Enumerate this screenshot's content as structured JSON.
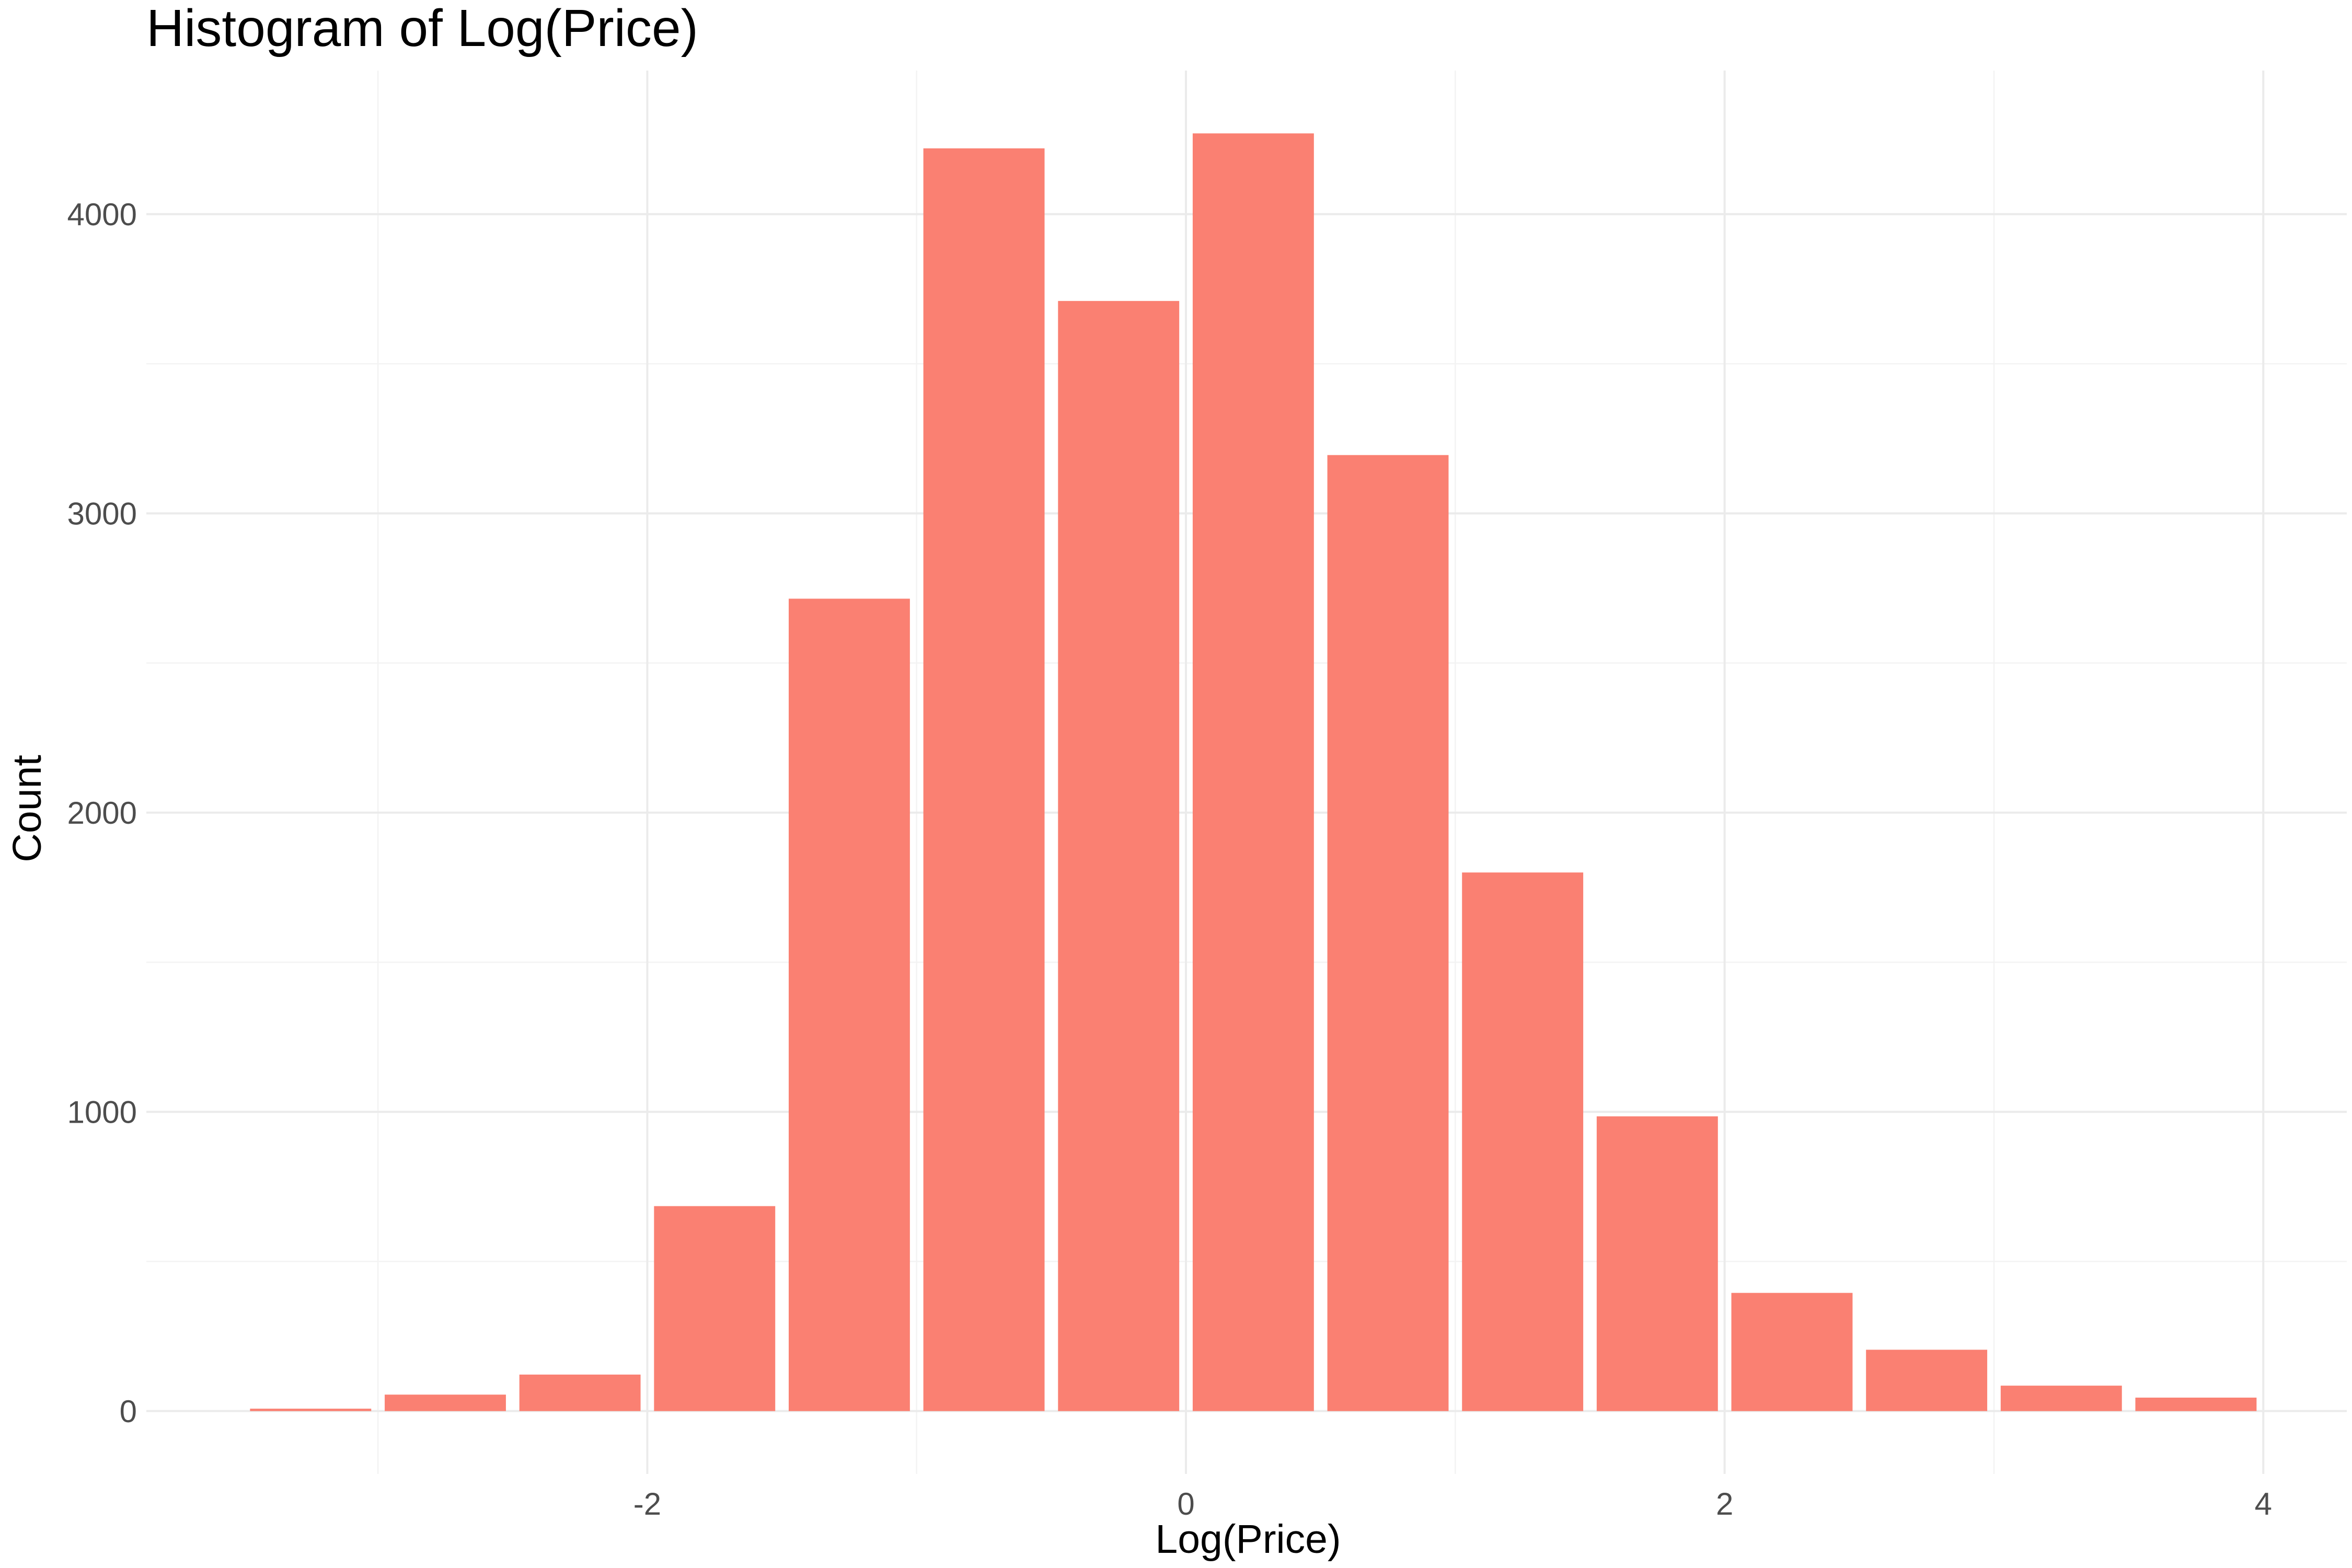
{
  "chart_data": {
    "type": "bar",
    "title": "Histogram of Log(Price)",
    "xlabel": "Log(Price)",
    "ylabel": "Count",
    "bin_width": 0.5,
    "bins": [
      {
        "x": -3.25,
        "count": 8
      },
      {
        "x": -2.75,
        "count": 55
      },
      {
        "x": -2.25,
        "count": 122
      },
      {
        "x": -1.75,
        "count": 685
      },
      {
        "x": -1.25,
        "count": 2715
      },
      {
        "x": -0.75,
        "count": 4220
      },
      {
        "x": -0.25,
        "count": 3710
      },
      {
        "x": 0.25,
        "count": 4270
      },
      {
        "x": 0.75,
        "count": 3195
      },
      {
        "x": 1.25,
        "count": 1800
      },
      {
        "x": 1.75,
        "count": 985
      },
      {
        "x": 2.25,
        "count": 395
      },
      {
        "x": 2.75,
        "count": 205
      },
      {
        "x": 3.25,
        "count": 85
      },
      {
        "x": 3.75,
        "count": 45
      }
    ],
    "x_ticks": [
      -2,
      0,
      2,
      4
    ],
    "x_tick_labels": [
      "-2",
      "0",
      "2",
      "4"
    ],
    "y_ticks": [
      0,
      1000,
      2000,
      3000,
      4000
    ],
    "y_tick_labels": [
      "0",
      "1000",
      "2000",
      "3000",
      "4000"
    ],
    "xlim": [
      -3.86,
      4.31
    ],
    "ylim": [
      -210,
      4480
    ],
    "grid": true,
    "bar_color": "#FA8072",
    "grid_color": "#EBEBEB",
    "background": "#FFFFFF"
  }
}
